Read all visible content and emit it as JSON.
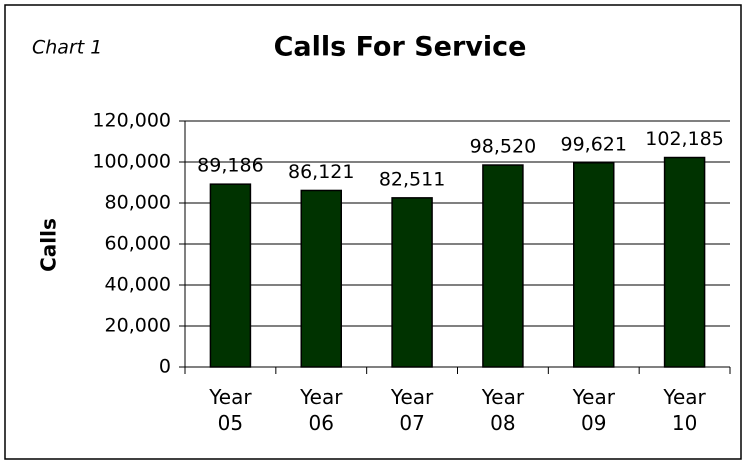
{
  "chart_data": {
    "type": "bar",
    "label": "Chart 1",
    "title": "Calls For Service",
    "ylabel": "Calls",
    "categories": [
      "Year 05",
      "Year 06",
      "Year 07",
      "Year 08",
      "Year 09",
      "Year 10"
    ],
    "values": [
      89186,
      86121,
      82511,
      98520,
      99621,
      102185
    ],
    "value_labels": [
      "89,186",
      "86,121",
      "82,511",
      "98,520",
      "99,621",
      "102,185"
    ],
    "color": "#003300",
    "ylim": [
      0,
      120000
    ],
    "yticks": [
      0,
      {
        "value": 20000,
        "label": "20,000"
      },
      {
        "value": 40000,
        "label": "40,000"
      },
      {
        "value": 60000,
        "label": "60,000"
      },
      {
        "value": 80000,
        "label": "80,000"
      },
      {
        "value": 100000,
        "label": "100,000"
      },
      {
        "value": 120000,
        "label": "120,000"
      }
    ],
    "grid": true
  }
}
